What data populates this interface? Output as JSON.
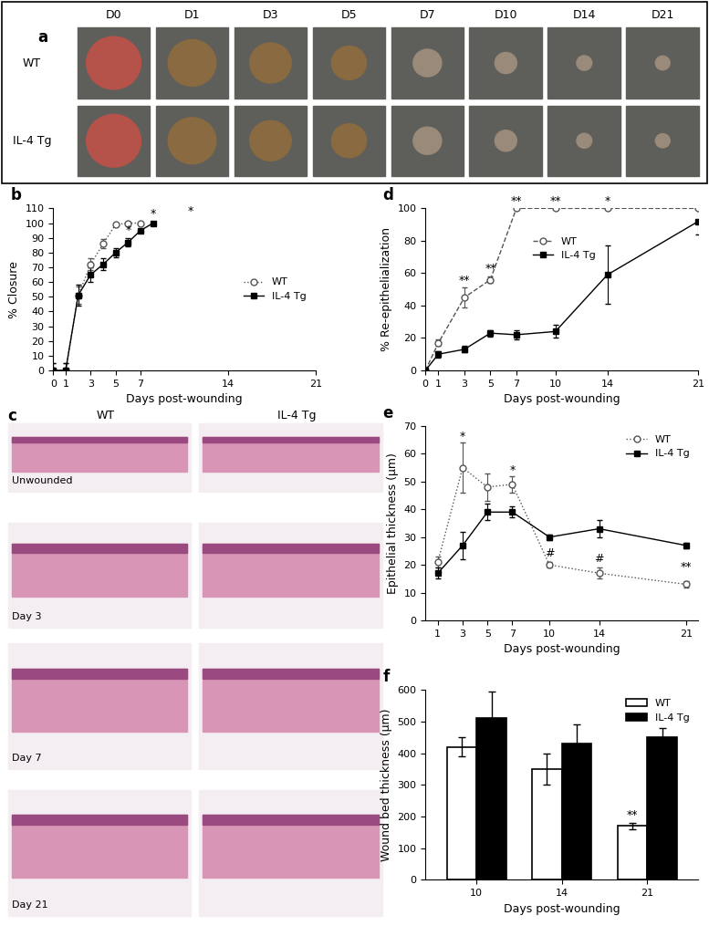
{
  "image_panels": [
    {
      "label": "a",
      "columns": [
        "D0",
        "D1",
        "D3",
        "D5",
        "D7",
        "D10",
        "D14",
        "D21"
      ],
      "rows": [
        "WT",
        "IL-4 Tg"
      ]
    },
    {
      "label": "c",
      "columns": [
        "WT",
        "IL-4 Tg"
      ],
      "rows": [
        "Unwounded",
        "Day 3",
        "Day 7",
        "Day 21"
      ]
    }
  ],
  "chart_data": [
    {
      "label": "b",
      "type": "line",
      "x_label": "Days post-wounding",
      "y_label": "% Closure",
      "xlim": [
        0,
        21
      ],
      "xticks": [
        0,
        1,
        3,
        5,
        7,
        14,
        21
      ],
      "ylim": [
        0,
        110
      ],
      "yticks": [
        0,
        10,
        20,
        30,
        40,
        50,
        60,
        70,
        80,
        90,
        100,
        110
      ],
      "legend": "center right",
      "series": [
        {
          "name": "WT",
          "color": "#555555",
          "marker": "open circle",
          "line_style": "dotted",
          "x": [
            0,
            1,
            2,
            3,
            4,
            5,
            6,
            7
          ],
          "values": [
            0,
            0,
            51,
            72,
            86,
            99,
            100,
            100
          ],
          "errors": [
            5,
            5,
            6,
            4,
            3,
            1,
            1,
            1
          ]
        },
        {
          "name": "IL-4 Tg",
          "color": "#000000",
          "marker": "filled square",
          "line_style": "solid",
          "x": [
            0,
            1,
            2,
            3,
            4,
            5,
            6,
            7,
            8
          ],
          "values": [
            0,
            0,
            51,
            65,
            72,
            80,
            87,
            95,
            100
          ],
          "errors": [
            5,
            5,
            7,
            5,
            4,
            3,
            3,
            1,
            1
          ]
        }
      ],
      "annotations": [
        {
          "text": "*",
          "x": 6,
          "y": 91
        },
        {
          "text": "*",
          "x": 8,
          "y": 102
        },
        {
          "text": "*",
          "x": 11,
          "y": 104
        }
      ]
    },
    {
      "label": "d",
      "type": "line",
      "x_label": "Days post-wounding",
      "y_label": "% Re-epithelialization",
      "xlim": [
        0,
        21
      ],
      "xticks": [
        0,
        1,
        3,
        5,
        7,
        10,
        14,
        21
      ],
      "ylim": [
        0,
        100
      ],
      "yticks": [
        0,
        20,
        40,
        60,
        80,
        100
      ],
      "legend": "upper left",
      "series": [
        {
          "name": "WT",
          "color": "#555555",
          "marker": "open circle",
          "line_style": "dashed",
          "x": [
            0,
            1,
            3,
            5,
            7,
            10,
            14,
            21
          ],
          "values": [
            0,
            17,
            45,
            56,
            100,
            100,
            100,
            100
          ],
          "errors": [
            0,
            2,
            6,
            2,
            0,
            0,
            0,
            0
          ]
        },
        {
          "name": "IL-4 Tg",
          "color": "#000000",
          "marker": "filled square",
          "line_style": "solid",
          "x": [
            0,
            1,
            3,
            5,
            7,
            10,
            14,
            21
          ],
          "values": [
            0,
            10,
            13,
            23,
            22,
            24,
            59,
            92
          ],
          "errors": [
            0,
            2,
            2,
            2,
            3,
            4,
            18,
            8
          ]
        }
      ],
      "annotations": [
        {
          "text": "**",
          "x": 3,
          "y": 52
        },
        {
          "text": "**",
          "x": 5,
          "y": 59
        },
        {
          "text": "**",
          "x": 7,
          "y": 101
        },
        {
          "text": "**",
          "x": 10,
          "y": 101
        },
        {
          "text": "*",
          "x": 14,
          "y": 101
        }
      ]
    },
    {
      "label": "e",
      "type": "line",
      "x_label": "Days post-wounding",
      "y_label": "Epithelial thickness (μm)",
      "xlim": [
        0,
        22
      ],
      "xticks": [
        1,
        3,
        5,
        7,
        10,
        14,
        21
      ],
      "ylim": [
        0,
        70
      ],
      "yticks": [
        0,
        10,
        20,
        30,
        40,
        50,
        60,
        70
      ],
      "legend": "upper right",
      "series": [
        {
          "name": "WT",
          "color": "#555555",
          "marker": "open circle",
          "line_style": "dotted",
          "x": [
            1,
            3,
            5,
            7,
            10,
            14,
            21
          ],
          "values": [
            21,
            55,
            48,
            49,
            20,
            17,
            13
          ],
          "errors": [
            2,
            9,
            5,
            3,
            1,
            2,
            1
          ]
        },
        {
          "name": "IL-4 Tg",
          "color": "#000000",
          "marker": "filled square",
          "line_style": "solid",
          "x": [
            1,
            3,
            5,
            7,
            10,
            14,
            21
          ],
          "values": [
            17,
            27,
            39,
            39,
            30,
            33,
            27
          ],
          "errors": [
            2,
            5,
            3,
            2,
            1,
            3,
            1
          ]
        }
      ],
      "annotations": [
        {
          "text": "*",
          "x": 3,
          "y": 64
        },
        {
          "text": "*",
          "x": 7,
          "y": 52
        },
        {
          "text": "#",
          "x": 10,
          "y": 22
        },
        {
          "text": "#",
          "x": 14,
          "y": 20
        },
        {
          "text": "**",
          "x": 21,
          "y": 17
        }
      ]
    },
    {
      "label": "f",
      "type": "bar",
      "x_label": "Days post-wounding",
      "y_label": "Wound bed thickness (μm)",
      "categories": [
        "10",
        "14",
        "21"
      ],
      "ylim": [
        0,
        600
      ],
      "yticks": [
        0,
        100,
        200,
        300,
        400,
        500,
        600
      ],
      "legend": "upper right",
      "series": [
        {
          "name": "WT",
          "color": "#ffffff",
          "values": [
            420,
            350,
            170
          ],
          "errors": [
            30,
            50,
            10
          ]
        },
        {
          "name": "IL-4 Tg",
          "color": "#000000",
          "values": [
            510,
            430,
            450
          ],
          "errors": [
            85,
            60,
            30
          ]
        }
      ],
      "annotations": [
        {
          "text": "**",
          "category": "21",
          "series": "WT",
          "y": 185
        }
      ]
    }
  ]
}
